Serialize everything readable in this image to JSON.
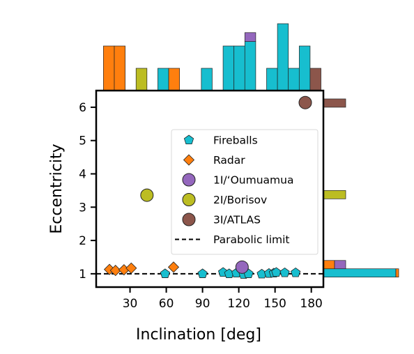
{
  "chart_data": {
    "type": "scatter",
    "xlabel": "Inclination [deg]",
    "ylabel": "Eccentricity",
    "xlim": [
      2,
      190
    ],
    "ylim": [
      0.6,
      6.5
    ],
    "xticks": [
      "30",
      "60",
      "90",
      "120",
      "150",
      "180"
    ],
    "yticks": [
      "1",
      "2",
      "3",
      "4",
      "5",
      "6"
    ],
    "legend_position": "center-right",
    "parabolic_limit": {
      "name": "Parabolic limit",
      "y": 1,
      "style": "dashed",
      "color": "#000000"
    },
    "series": [
      {
        "name": "Fireballs",
        "marker": "pentagon",
        "color": "#17becf",
        "points": [
          [
            59,
            1.0
          ],
          [
            90,
            1.0
          ],
          [
            107,
            1.04
          ],
          [
            112,
            1.0
          ],
          [
            118,
            1.02
          ],
          [
            124,
            0.98
          ],
          [
            128,
            1.0
          ],
          [
            139,
            0.99
          ],
          [
            145,
            1.01
          ],
          [
            149,
            1.02
          ],
          [
            151,
            1.04
          ],
          [
            158,
            1.03
          ],
          [
            167,
            1.03
          ]
        ]
      },
      {
        "name": "Radar",
        "marker": "diamond",
        "color": "#ff7f0e",
        "points": [
          [
            13,
            1.13
          ],
          [
            18,
            1.1
          ],
          [
            25,
            1.12
          ],
          [
            31,
            1.17
          ],
          [
            66,
            1.2
          ]
        ]
      },
      {
        "name": "1I/‘Oumuamua",
        "marker": "circle",
        "color": "#9467bd",
        "points": [
          [
            122.7,
            1.2
          ]
        ]
      },
      {
        "name": "2I/Borisov",
        "marker": "circle",
        "color": "#bcbd22",
        "points": [
          [
            44,
            3.36
          ]
        ]
      },
      {
        "name": "3I/ATLAS",
        "marker": "circle",
        "color": "#8c564b",
        "points": [
          [
            175,
            6.14
          ]
        ]
      }
    ],
    "top_histogram": {
      "bins": [
        {
          "x0": 8,
          "x1": 17,
          "stacks": [
            [
              "Radar",
              2
            ]
          ]
        },
        {
          "x0": 17,
          "x1": 26,
          "stacks": [
            [
              "Radar",
              2
            ]
          ]
        },
        {
          "x0": 35,
          "x1": 44,
          "stacks": [
            [
              "2I/Borisov",
              1
            ]
          ]
        },
        {
          "x0": 53,
          "x1": 62,
          "stacks": [
            [
              "Fireballs",
              1
            ]
          ]
        },
        {
          "x0": 62,
          "x1": 71,
          "stacks": [
            [
              "Radar",
              1
            ]
          ]
        },
        {
          "x0": 89,
          "x1": 98,
          "stacks": [
            [
              "Fireballs",
              1
            ]
          ]
        },
        {
          "x0": 107,
          "x1": 116,
          "stacks": [
            [
              "Fireballs",
              2
            ]
          ]
        },
        {
          "x0": 116,
          "x1": 125,
          "stacks": [
            [
              "Fireballs",
              2
            ]
          ]
        },
        {
          "x0": 125,
          "x1": 134,
          "stacks": [
            [
              "Fireballs",
              2.2
            ],
            [
              "1I/‘Oumuamua",
              0.4
            ]
          ]
        },
        {
          "x0": 143,
          "x1": 152,
          "stacks": [
            [
              "Fireballs",
              1
            ]
          ]
        },
        {
          "x0": 152,
          "x1": 161,
          "stacks": [
            [
              "Fireballs",
              3
            ]
          ]
        },
        {
          "x0": 161,
          "x1": 170,
          "stacks": [
            [
              "Fireballs",
              1
            ]
          ]
        },
        {
          "x0": 170,
          "x1": 179,
          "stacks": [
            [
              "Fireballs",
              2
            ]
          ]
        },
        {
          "x0": 179,
          "x1": 188,
          "stacks": [
            [
              "3I/ATLAS",
              1
            ]
          ]
        }
      ]
    },
    "right_histogram": {
      "bins": [
        {
          "y0": 0.9,
          "y1": 1.15,
          "stacks": [
            [
              "Fireballs",
              13
            ],
            [
              "Radar",
              0.5
            ]
          ]
        },
        {
          "y0": 1.15,
          "y1": 1.4,
          "stacks": [
            [
              "Radar",
              2
            ],
            [
              "1I/‘Oumuamua",
              2
            ]
          ]
        },
        {
          "y0": 3.25,
          "y1": 3.5,
          "stacks": [
            [
              "2I/Borisov",
              4
            ]
          ]
        },
        {
          "y0": 6.0,
          "y1": 6.25,
          "stacks": [
            [
              "3I/ATLAS",
              4
            ]
          ]
        }
      ]
    }
  }
}
